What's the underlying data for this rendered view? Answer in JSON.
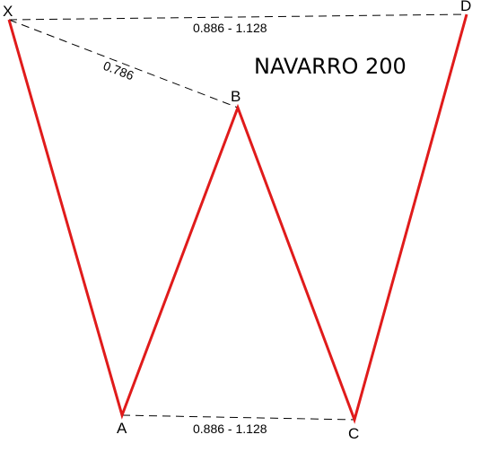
{
  "title": "NAVARRO 200",
  "points": {
    "X": "X",
    "A": "A",
    "B": "B",
    "C": "C",
    "D": "D"
  },
  "ratios": {
    "xb": "0.786",
    "xd": "0.886 - 1.128",
    "ac": "0.886 - 1.128"
  },
  "colors": {
    "pattern_line": "#e01b1b",
    "ratio_line": "#000000",
    "background": "#ffffff"
  }
}
